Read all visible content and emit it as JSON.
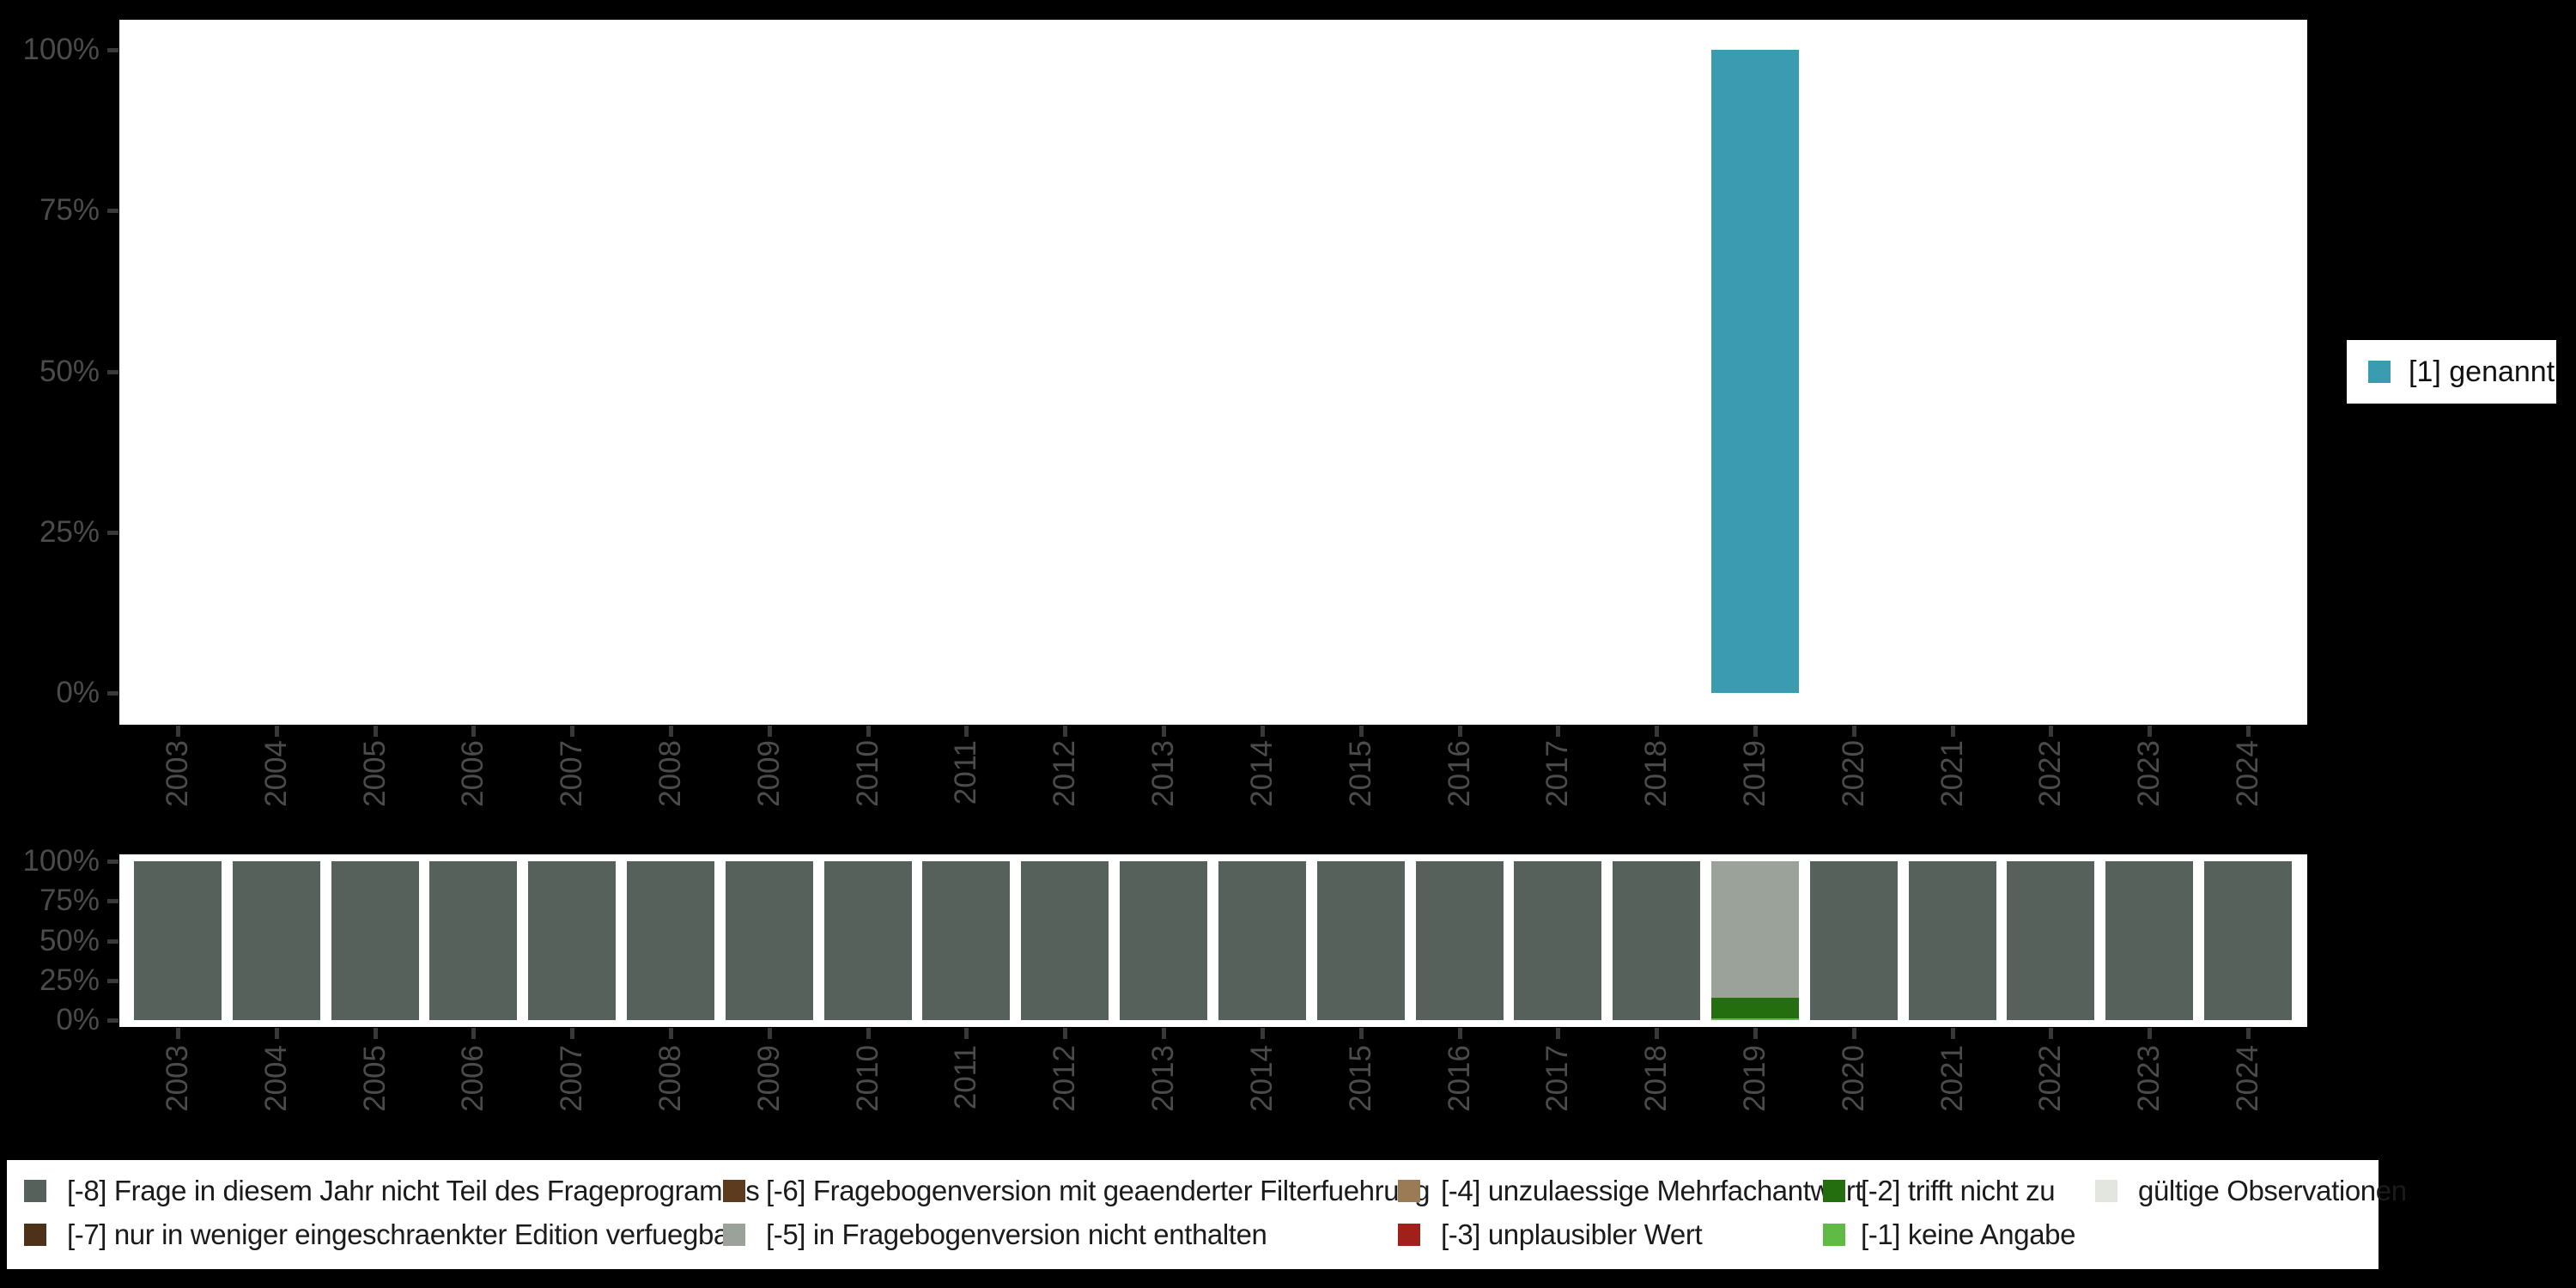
{
  "page": {
    "background": "#000000"
  },
  "years": [
    "2003",
    "2004",
    "2005",
    "2006",
    "2007",
    "2008",
    "2009",
    "2010",
    "2011",
    "2012",
    "2013",
    "2014",
    "2015",
    "2016",
    "2017",
    "2018",
    "2019",
    "2020",
    "2021",
    "2022",
    "2023",
    "2024"
  ],
  "axes": {
    "y_tick_labels": [
      "100%",
      "75%",
      "50%",
      "25%",
      "0%"
    ],
    "label_color": "#4B4B4B"
  },
  "legend_right": {
    "label": "[1] genannt",
    "color": "#3B9BB1"
  },
  "legend_bottom": {
    "items": [
      {
        "code": "-8",
        "label": "[-8] Frage in diesem Jahr nicht Teil des Frageprogramms",
        "color": "#57615B"
      },
      {
        "code": "-7",
        "label": "[-7] nur in weniger eingeschraenkter Edition verfuegbar",
        "color": "#4D3118"
      },
      {
        "code": "-6",
        "label": "[-6] Fragebogenversion mit geaenderter Filterfuehrung",
        "color": "#5D3B1F"
      },
      {
        "code": "-5",
        "label": "[-5] in Fragebogenversion nicht enthalten",
        "color": "#9BA29A"
      },
      {
        "code": "-4",
        "label": "[-4] unzulaessige Mehrfachantwort",
        "color": "#9B7B55"
      },
      {
        "code": "-3",
        "label": "[-3] unplausibler Wert",
        "color": "#A2201A"
      },
      {
        "code": "-2",
        "label": "[-2] trifft nicht zu",
        "color": "#246E10"
      },
      {
        "code": "-1",
        "label": "[-1] keine Angabe",
        "color": "#5FBA46"
      },
      {
        "code": "valid",
        "label": "gültige Observationen",
        "color": "#E2E6DE"
      }
    ]
  },
  "chart_data": [
    {
      "type": "bar",
      "title": "",
      "categories": [
        "2003",
        "2004",
        "2005",
        "2006",
        "2007",
        "2008",
        "2009",
        "2010",
        "2011",
        "2012",
        "2013",
        "2014",
        "2015",
        "2016",
        "2017",
        "2018",
        "2019",
        "2020",
        "2021",
        "2022",
        "2023",
        "2024"
      ],
      "series": [
        {
          "name": "[1] genannt",
          "color": "#3B9BB1",
          "values": [
            0,
            0,
            0,
            0,
            0,
            0,
            0,
            0,
            0,
            0,
            0,
            0,
            0,
            0,
            0,
            0,
            100,
            0,
            0,
            0,
            0,
            0
          ]
        }
      ],
      "xlabel": "",
      "ylabel": "",
      "ylim": [
        0,
        100
      ],
      "yticks": [
        "0%",
        "25%",
        "50%",
        "75%",
        "100%"
      ],
      "grid": false,
      "legend_position": "right"
    },
    {
      "type": "bar",
      "stacked": true,
      "title": "",
      "categories": [
        "2003",
        "2004",
        "2005",
        "2006",
        "2007",
        "2008",
        "2009",
        "2010",
        "2011",
        "2012",
        "2013",
        "2014",
        "2015",
        "2016",
        "2017",
        "2018",
        "2019",
        "2020",
        "2021",
        "2022",
        "2023",
        "2024"
      ],
      "series": [
        {
          "name": "[-8] Frage in diesem Jahr nicht Teil des Frageprogramms",
          "color": "#57615B",
          "values": [
            100,
            100,
            100,
            100,
            100,
            100,
            100,
            100,
            100,
            100,
            100,
            100,
            100,
            100,
            100,
            100,
            0,
            100,
            100,
            100,
            100,
            100
          ]
        },
        {
          "name": "[-5] in Fragebogenversion nicht enthalten",
          "color": "#9BA29A",
          "values": [
            0,
            0,
            0,
            0,
            0,
            0,
            0,
            0,
            0,
            0,
            0,
            0,
            0,
            0,
            0,
            0,
            86,
            0,
            0,
            0,
            0,
            0
          ]
        },
        {
          "name": "[-2] trifft nicht zu",
          "color": "#246E10",
          "values": [
            0,
            0,
            0,
            0,
            0,
            0,
            0,
            0,
            0,
            0,
            0,
            0,
            0,
            0,
            0,
            0,
            13,
            0,
            0,
            0,
            0,
            0
          ]
        },
        {
          "name": "[-1] keine Angabe",
          "color": "#5FBA46",
          "values": [
            0,
            0,
            0,
            0,
            0,
            0,
            0,
            0,
            0,
            0,
            0,
            0,
            0,
            0,
            0,
            0,
            1,
            0,
            0,
            0,
            0,
            0
          ]
        }
      ],
      "xlabel": "",
      "ylabel": "",
      "ylim": [
        0,
        100
      ],
      "yticks": [
        "0%",
        "25%",
        "50%",
        "75%",
        "100%"
      ],
      "grid": false,
      "legend_position": "bottom"
    }
  ]
}
